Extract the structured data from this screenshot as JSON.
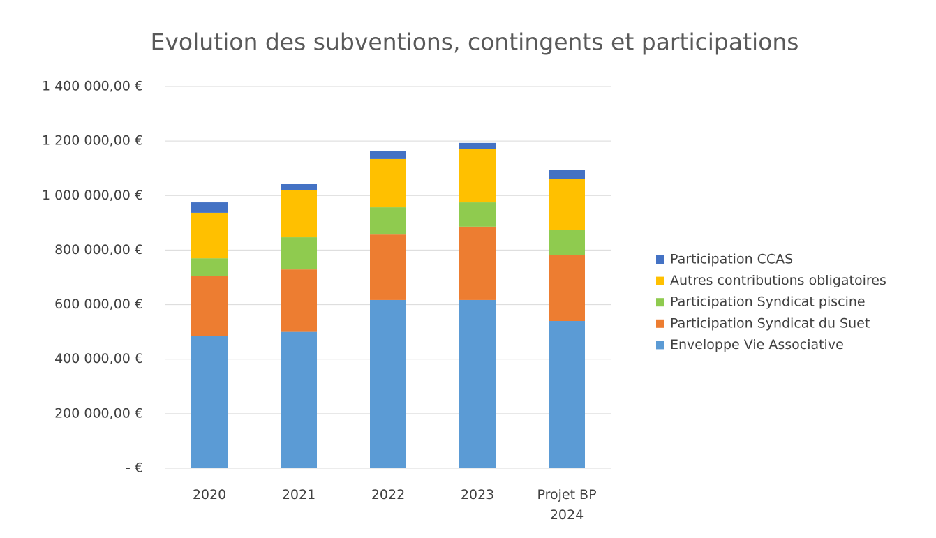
{
  "chart_data": {
    "type": "bar",
    "stacked": true,
    "title": "Evolution des subventions, contingents et participations",
    "categories": [
      "2020",
      "2021",
      "2022",
      "2023",
      "Projet BP 2024"
    ],
    "series": [
      {
        "name": "Enveloppe Vie Associative",
        "color": "#5b9bd5",
        "values": [
          484000,
          500000,
          617000,
          617000,
          540000
        ]
      },
      {
        "name": "Participation Syndicat du Suet",
        "color": "#ed7d31",
        "values": [
          220000,
          229000,
          240000,
          269000,
          241000
        ]
      },
      {
        "name": "Participation Syndicat piscine",
        "color": "#8fcb4f",
        "values": [
          66000,
          118000,
          100000,
          89000,
          92000
        ]
      },
      {
        "name": "Autres contributions obligatoires",
        "color": "#ffc000",
        "values": [
          167000,
          172000,
          177000,
          197000,
          189000
        ]
      },
      {
        "name": "Participation CCAS",
        "color": "#4472c4",
        "values": [
          38000,
          23000,
          28000,
          21000,
          33000
        ]
      }
    ],
    "ylim": [
      0,
      1400000
    ],
    "yticks": [
      {
        "value": 0,
        "label": "-  €"
      },
      {
        "value": 200000,
        "label": "200 000,00 €"
      },
      {
        "value": 400000,
        "label": "400 000,00 €"
      },
      {
        "value": 600000,
        "label": "600 000,00 €"
      },
      {
        "value": 800000,
        "label": "800 000,00 €"
      },
      {
        "value": 1000000,
        "label": "1 000 000,00 €"
      },
      {
        "value": 1200000,
        "label": "1 200 000,00 €"
      },
      {
        "value": 1400000,
        "label": "1 400 000,00 €"
      }
    ],
    "grid": true,
    "legend": "right"
  }
}
